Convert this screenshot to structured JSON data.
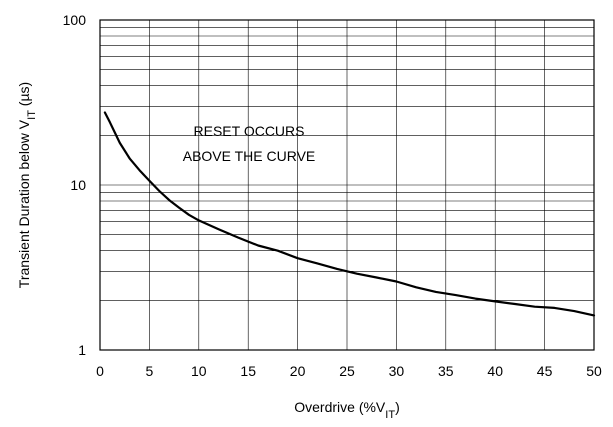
{
  "chart_data": {
    "type": "line",
    "x_scale": "linear",
    "y_scale": "log",
    "xlim": [
      0,
      50
    ],
    "ylim": [
      1,
      100
    ],
    "x_ticks": [
      "0",
      "5",
      "10",
      "15",
      "20",
      "25",
      "30",
      "35",
      "40",
      "45",
      "50"
    ],
    "y_ticks": [
      {
        "value": 1,
        "label": "1"
      },
      {
        "value": 10,
        "label": "10"
      },
      {
        "value": 100,
        "label": "100"
      }
    ],
    "xlabel_main": "Overdrive (%V",
    "xlabel_sub": "IT",
    "xlabel_tail": ")",
    "ylabel_main": "Transient Duration below V",
    "ylabel_sub": "IT",
    "ylabel_tail": " (µs)",
    "annotation": [
      "RESET OCCURS",
      "ABOVE THE CURVE"
    ],
    "grid": true,
    "series": [
      {
        "x": [
          0.5,
          1,
          2,
          3,
          4,
          5,
          6,
          7,
          8,
          9,
          10,
          12,
          14,
          16,
          18,
          20,
          22,
          24,
          26,
          28,
          30,
          32,
          34,
          36,
          38,
          40,
          42,
          44,
          46,
          48,
          50
        ],
        "y": [
          27.5,
          24,
          18,
          14.5,
          12.3,
          10.6,
          9.2,
          8.1,
          7.3,
          6.6,
          6.1,
          5.4,
          4.8,
          4.3,
          4.0,
          3.6,
          3.35,
          3.1,
          2.9,
          2.75,
          2.6,
          2.4,
          2.25,
          2.15,
          2.05,
          1.97,
          1.9,
          1.83,
          1.8,
          1.72,
          1.62
        ]
      }
    ]
  }
}
